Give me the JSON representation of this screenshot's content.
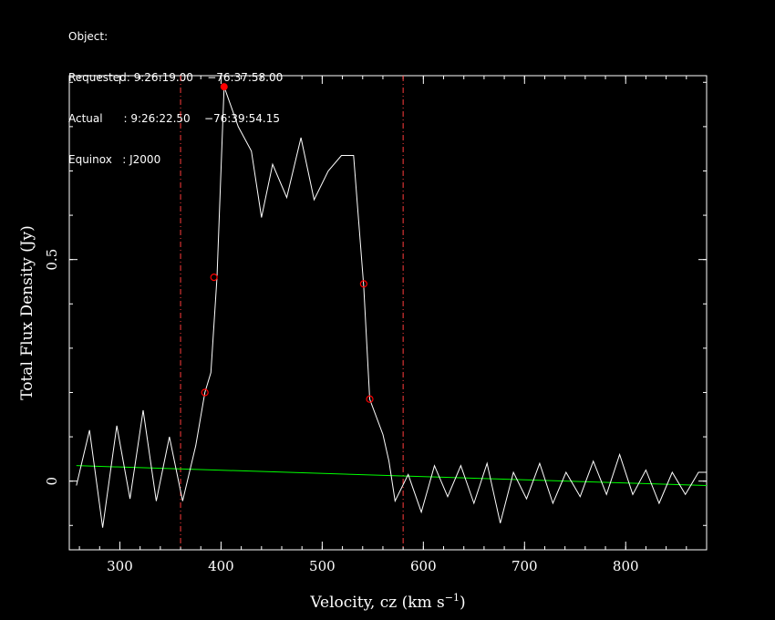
{
  "header": {
    "object_line": "Object:",
    "requested_line": "Requested: 9:26:19.00    −76:37:58.00",
    "actual_line": "Actual      : 9:26:22.50    −76:39:54.15",
    "equinox_line": "Equinox   : J2000"
  },
  "chart_data": {
    "type": "line",
    "xlabel": "Velocity, cz (km s",
    "xlabel_sup": "−1",
    "xlabel_close": ")",
    "ylabel": "Total Flux Density (Jy)",
    "xlim": [
      250,
      880
    ],
    "ylim": [
      -0.155,
      0.915
    ],
    "x_ticks": [
      300,
      400,
      500,
      600,
      700,
      800
    ],
    "x_tick_labels": [
      "300",
      "400",
      "500",
      "600",
      "700",
      "800"
    ],
    "y_ticks": [
      0,
      0.5
    ],
    "y_tick_labels": [
      "0",
      "0.5"
    ],
    "x_minor_step": 20,
    "y_minor_step": 0.1,
    "grid": false,
    "colors": {
      "spectrum": "#ffffff",
      "baseline": "#00ff00",
      "window": "#ff3c3c",
      "markers": "#ff0000"
    },
    "series": [
      {
        "x": [
          257,
          270,
          283,
          297,
          310,
          323,
          336,
          349,
          362,
          375,
          384,
          390,
          396,
          403,
          417,
          430,
          440,
          451,
          465,
          479,
          492,
          506,
          519,
          531,
          541,
          547,
          560,
          566,
          572,
          585,
          598,
          611,
          624,
          637,
          650,
          663,
          676,
          689,
          702,
          715,
          728,
          741,
          755,
          768,
          781,
          794,
          807,
          820,
          833,
          846,
          859,
          872,
          880
        ],
        "y": [
          -0.01,
          0.115,
          -0.105,
          0.125,
          -0.04,
          0.16,
          -0.045,
          0.1,
          -0.045,
          0.08,
          0.2,
          0.245,
          0.46,
          0.89,
          0.8,
          0.745,
          0.595,
          0.715,
          0.64,
          0.775,
          0.635,
          0.7,
          0.735,
          0.735,
          0.44,
          0.185,
          0.105,
          0.045,
          -0.045,
          0.015,
          -0.07,
          0.035,
          -0.035,
          0.035,
          -0.05,
          0.04,
          -0.095,
          0.02,
          -0.04,
          0.04,
          -0.05,
          0.02,
          -0.035,
          0.045,
          -0.03,
          0.06,
          -0.03,
          0.025,
          -0.05,
          0.02,
          -0.03,
          0.02,
          0.02
        ]
      }
    ],
    "baseline": {
      "x": [
        257,
        880
      ],
      "y": [
        0.035,
        -0.01
      ]
    },
    "window_lines_x": [
      360,
      580
    ],
    "peak_marker": {
      "x": 403,
      "y": 0.89
    },
    "edge_markers": [
      {
        "x": 384,
        "y": 0.2
      },
      {
        "x": 393,
        "y": 0.46
      },
      {
        "x": 541,
        "y": 0.445
      },
      {
        "x": 547,
        "y": 0.185
      }
    ]
  }
}
